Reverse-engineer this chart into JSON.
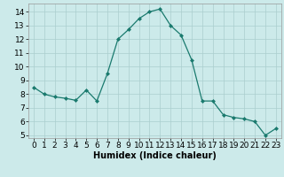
{
  "x": [
    0,
    1,
    2,
    3,
    4,
    5,
    6,
    7,
    8,
    9,
    10,
    11,
    12,
    13,
    14,
    15,
    16,
    17,
    18,
    19,
    20,
    21,
    22,
    23
  ],
  "y": [
    8.5,
    8.0,
    7.8,
    7.7,
    7.55,
    8.3,
    7.5,
    9.5,
    12.0,
    12.7,
    13.5,
    14.0,
    14.2,
    13.0,
    12.3,
    10.5,
    7.5,
    7.5,
    6.5,
    6.3,
    6.2,
    6.0,
    5.0,
    5.5
  ],
  "xlabel": "Humidex (Indice chaleur)",
  "line_color": "#1a7a6e",
  "marker": "D",
  "marker_size": 2.0,
  "bg_color": "#cceaea",
  "grid_color": "#aacece",
  "xlim": [
    -0.5,
    23.5
  ],
  "ylim": [
    4.8,
    14.6
  ],
  "yticks": [
    5,
    6,
    7,
    8,
    9,
    10,
    11,
    12,
    13,
    14
  ],
  "xticks": [
    0,
    1,
    2,
    3,
    4,
    5,
    6,
    7,
    8,
    9,
    10,
    11,
    12,
    13,
    14,
    15,
    16,
    17,
    18,
    19,
    20,
    21,
    22,
    23
  ],
  "xlabel_fontsize": 7,
  "tick_fontsize": 6.5
}
